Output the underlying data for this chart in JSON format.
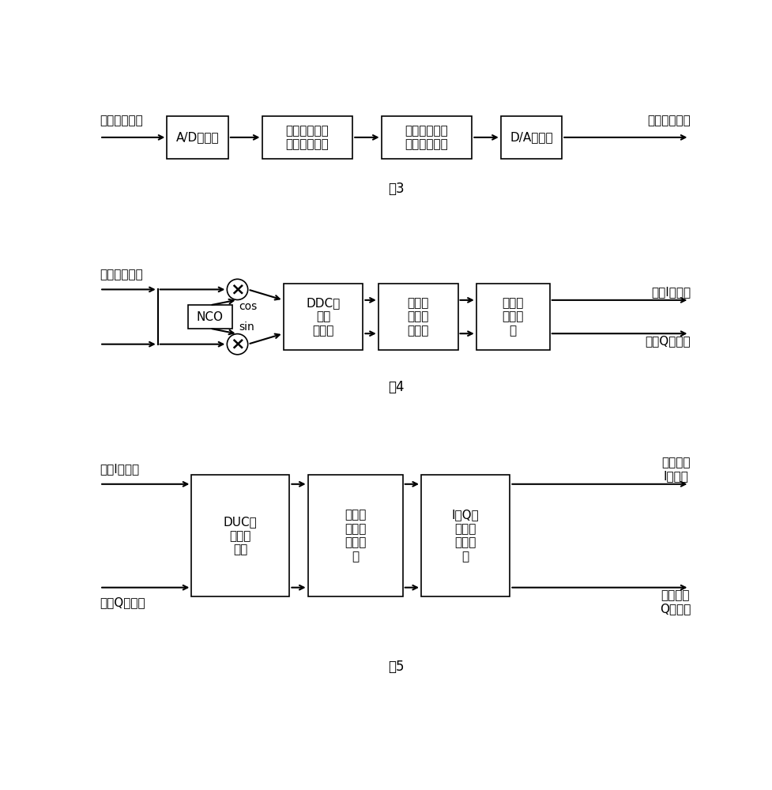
{
  "bg_color": "#ffffff",
  "fig3": {
    "caption": "图3",
    "input_label": "模拟中频信号",
    "output_label": "模拟中频信号",
    "blocks": [
      "A/D转换器",
      "宽带信号数字\n下变频子系统",
      "宽带信号数字\n上变频子系统",
      "D/A转换器"
    ]
  },
  "fig4": {
    "caption": "图4",
    "input_label": "数字中频信号",
    "output_top": "基带I路信号",
    "output_bot": "基带Q路信号",
    "nco_label": "NCO",
    "cos_label": "cos",
    "sin_label": "sin",
    "blocks": [
      "DDC自\n适应\n判决器",
      "倍数可\n变抽取\n滤波器",
      "基带成\n型滤波\n器"
    ]
  },
  "fig5": {
    "caption": "图5",
    "input_top": "基带I路信号",
    "input_bot": "基带Q路信号",
    "output_top": "数字中频\nI路信号",
    "output_bot": "数字中频\nQ路信号",
    "blocks": [
      "DUC自\n适应判\n决器",
      "倍数可\n变内插\n滤波器\n组",
      "I、Q信\n号多级\n调制模\n块"
    ]
  }
}
